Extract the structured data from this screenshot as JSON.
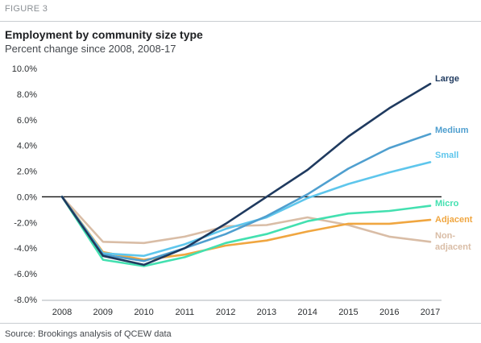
{
  "figure_label": "FIGURE 3",
  "source": "Source: Brookings analysis of QCEW data",
  "chart_data": {
    "type": "line",
    "title": "Employment by community size type",
    "subtitle": "Percent change since 2008, 2008-17",
    "xlabel": "",
    "ylabel": "",
    "x": [
      "2008",
      "2009",
      "2010",
      "2011",
      "2012",
      "2013",
      "2014",
      "2015",
      "2016",
      "2017"
    ],
    "ylim": [
      -8,
      10
    ],
    "yticks": [
      10,
      8,
      6,
      4,
      2,
      0,
      -2,
      -4,
      -6,
      -8
    ],
    "ytick_labels": [
      "10.0%",
      "8.0%",
      "6.0%",
      "4.0%",
      "2.0%",
      "0.0%",
      "-2.0%",
      "-4.0%",
      "-6.0%",
      "-8.0%"
    ],
    "zero_line": true,
    "grid": false,
    "legend": "direct labels at line ends",
    "series": [
      {
        "name": "Large",
        "color": "#1f3a5f",
        "values": [
          0,
          -4.6,
          -5.3,
          -4.0,
          -2.1,
          0.0,
          2.1,
          4.7,
          6.9,
          8.8
        ]
      },
      {
        "name": "Medium",
        "color": "#4f9fcf",
        "values": [
          0,
          -4.5,
          -5.0,
          -4.0,
          -2.9,
          -1.5,
          0.2,
          2.2,
          3.8,
          4.9
        ]
      },
      {
        "name": "Small",
        "color": "#5ec6ec",
        "values": [
          0,
          -4.4,
          -4.6,
          -3.7,
          -2.5,
          -1.6,
          -0.1,
          1.0,
          1.9,
          2.7
        ]
      },
      {
        "name": "Micro",
        "color": "#43e0b0",
        "values": [
          0,
          -4.9,
          -5.4,
          -4.7,
          -3.6,
          -2.9,
          -1.9,
          -1.3,
          -1.1,
          -0.7
        ]
      },
      {
        "name": "Adjacent",
        "color": "#f0a640",
        "values": [
          0,
          -4.3,
          -4.9,
          -4.5,
          -3.8,
          -3.4,
          -2.7,
          -2.1,
          -2.1,
          -1.8
        ]
      },
      {
        "name": "Non-\nadjacent",
        "color": "#d9bda6",
        "values": [
          0,
          -3.5,
          -3.6,
          -3.1,
          -2.3,
          -2.2,
          -1.6,
          -2.2,
          -3.1,
          -3.5
        ]
      }
    ]
  }
}
